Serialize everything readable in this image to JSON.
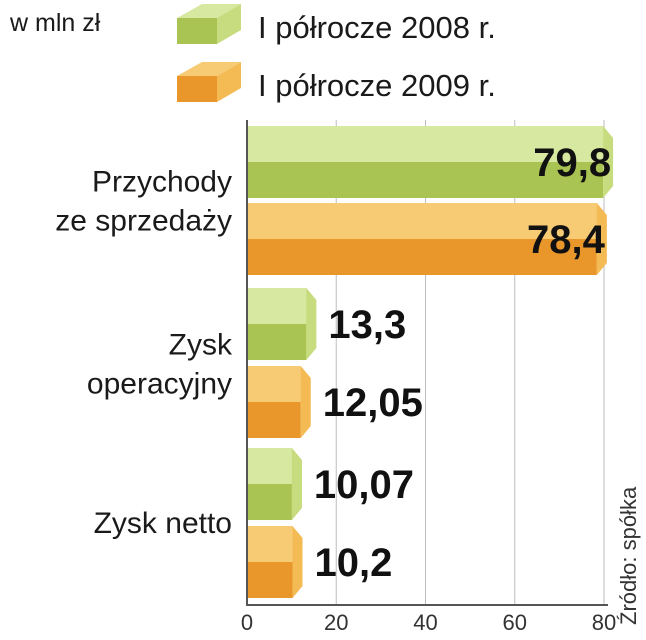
{
  "unit_label": "w mln zł",
  "source": "Źródło: spółka",
  "colors": {
    "series_2008": "#a9c452",
    "series_2008_light": "#d7e8a0",
    "series_2008_side": "#c7dc7e",
    "series_2009": "#e9962b",
    "series_2009_light": "#f7cb74",
    "series_2009_side": "#f4bb55"
  },
  "chart_data": {
    "type": "bar",
    "orientation": "horizontal",
    "categories": [
      "Przychody ze sprzedaży",
      "Zysk operacyjny",
      "Zysk netto"
    ],
    "category_lines": [
      [
        "Przychody",
        "ze sprzedaży"
      ],
      [
        "Zysk",
        "operacyjny"
      ],
      [
        "Zysk netto"
      ]
    ],
    "series": [
      {
        "name": "I półrocze 2008 r.",
        "values": [
          79.8,
          13.3,
          10.07
        ],
        "labels": [
          "79,8",
          "13,3",
          "10,07"
        ]
      },
      {
        "name": "I półrocze 2009 r.",
        "values": [
          78.4,
          12.05,
          10.2
        ],
        "labels": [
          "78,4",
          "12,05",
          "10,2"
        ]
      }
    ],
    "xlim": [
      0,
      80
    ],
    "xticks": [
      0,
      20,
      40,
      60,
      80
    ],
    "tick_labels": [
      "0",
      "20",
      "40",
      "60",
      "80"
    ],
    "grid": true,
    "legend_position": "top"
  }
}
